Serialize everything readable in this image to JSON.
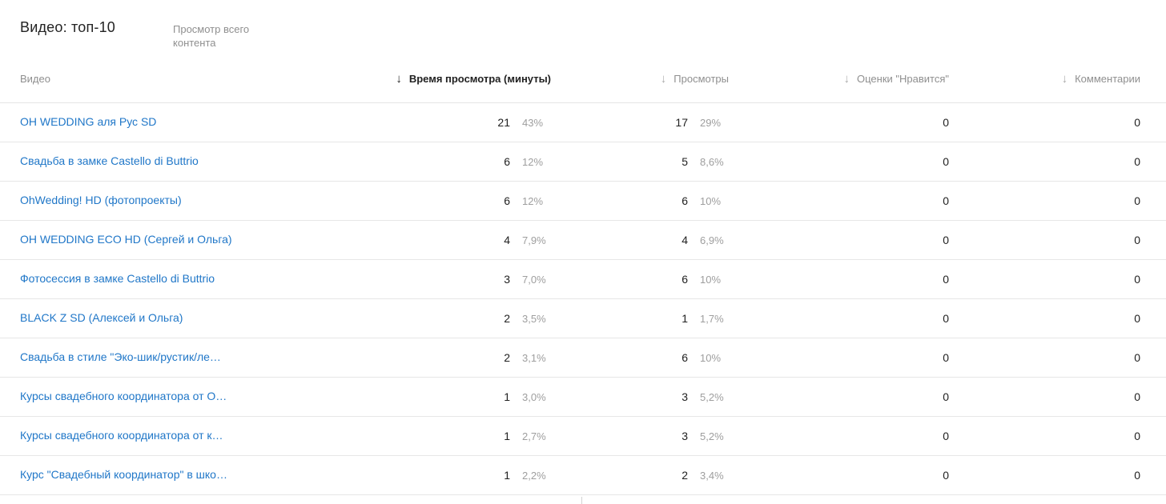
{
  "panel": {
    "title": "Видео: топ-10",
    "view_all_label": "Просмотр всего контента"
  },
  "icons": {
    "sort_desc": "↓"
  },
  "colors": {
    "link_blue": "#2077c8",
    "text_dark": "#212121",
    "text_gray": "#8f8f8f",
    "percent_gray": "#9e9e9e",
    "divider": "#e7e7e7"
  },
  "table": {
    "columns": [
      {
        "label": "Видео",
        "sorted": false
      },
      {
        "label": "Время просмотра (минуты)",
        "sorted": true
      },
      {
        "label": "Просмотры",
        "sorted": false
      },
      {
        "label": "Оценки \"Нравится\"",
        "sorted": false
      },
      {
        "label": "Комментарии",
        "sorted": false
      }
    ],
    "rows": [
      {
        "video": "OH WEDDING аля Рус SD",
        "watch_time": "21",
        "watch_time_pct": "43%",
        "views": "17",
        "views_pct": "29%",
        "likes": "0",
        "comments": "0"
      },
      {
        "video": "Свадьба в замке Castello di Buttrio",
        "watch_time": "6",
        "watch_time_pct": "12%",
        "views": "5",
        "views_pct": "8,6%",
        "likes": "0",
        "comments": "0"
      },
      {
        "video": "OhWedding! HD (фотопроекты)",
        "watch_time": "6",
        "watch_time_pct": "12%",
        "views": "6",
        "views_pct": "10%",
        "likes": "0",
        "comments": "0"
      },
      {
        "video": "OH WEDDING ECO HD (Сергей и Ольга)",
        "watch_time": "4",
        "watch_time_pct": "7,9%",
        "views": "4",
        "views_pct": "6,9%",
        "likes": "0",
        "comments": "0"
      },
      {
        "video": "Фотосессия в замке Castello di Buttrio",
        "watch_time": "3",
        "watch_time_pct": "7,0%",
        "views": "6",
        "views_pct": "10%",
        "likes": "0",
        "comments": "0"
      },
      {
        "video": "BLACK Z SD (Алексей и Ольга)",
        "watch_time": "2",
        "watch_time_pct": "3,5%",
        "views": "1",
        "views_pct": "1,7%",
        "likes": "0",
        "comments": "0"
      },
      {
        "video": "Свадьба в стиле \"Эко-шик/рустик/ле…",
        "watch_time": "2",
        "watch_time_pct": "3,1%",
        "views": "6",
        "views_pct": "10%",
        "likes": "0",
        "comments": "0"
      },
      {
        "video": "Курсы свадебного координатора от О…",
        "watch_time": "1",
        "watch_time_pct": "3,0%",
        "views": "3",
        "views_pct": "5,2%",
        "likes": "0",
        "comments": "0"
      },
      {
        "video": "Курсы свадебного координатора от к…",
        "watch_time": "1",
        "watch_time_pct": "2,7%",
        "views": "3",
        "views_pct": "5,2%",
        "likes": "0",
        "comments": "0"
      },
      {
        "video": "Курс \"Свадебный координатор\" в шко…",
        "watch_time": "1",
        "watch_time_pct": "2,2%",
        "views": "2",
        "views_pct": "3,4%",
        "likes": "0",
        "comments": "0"
      }
    ]
  }
}
